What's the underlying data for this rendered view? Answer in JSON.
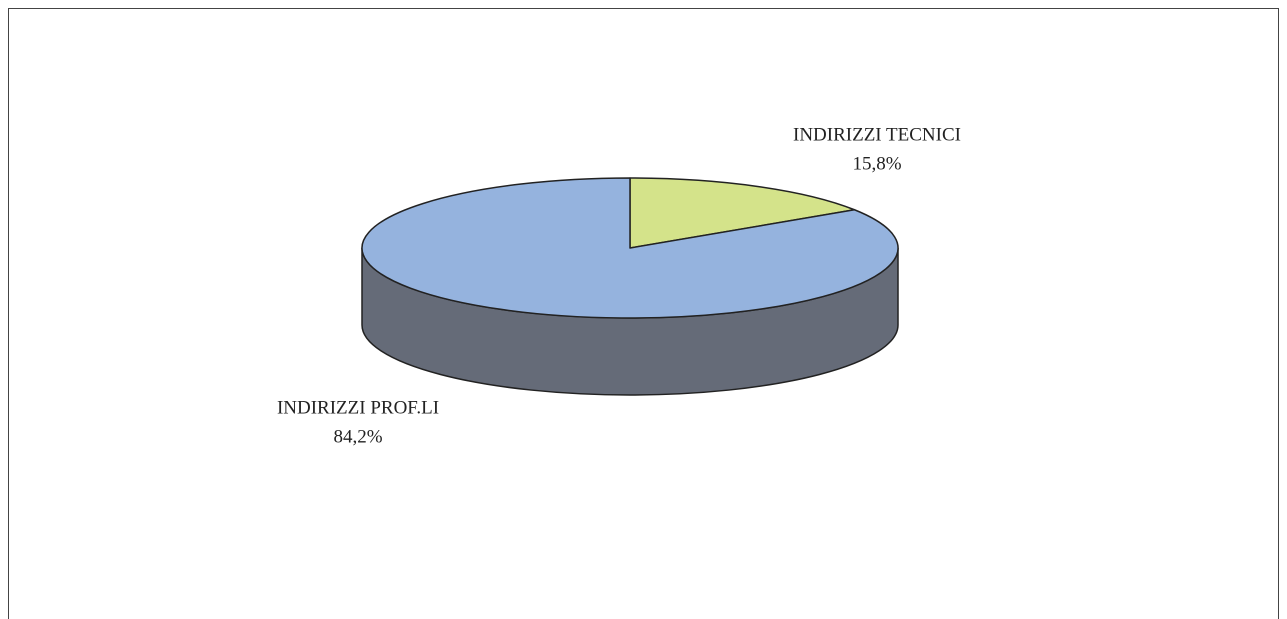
{
  "chart_data": {
    "type": "pie",
    "categories": [
      "INDIRIZZI TECNICI",
      "INDIRIZZI PROF.LI"
    ],
    "values": [
      15.8,
      84.2
    ],
    "value_labels": [
      "15,8%",
      "84,2%"
    ],
    "colors": [
      "#d4e38a",
      "#95b3de"
    ],
    "side_color": "#656b78"
  }
}
